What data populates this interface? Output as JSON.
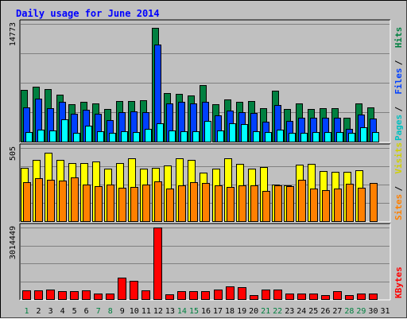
{
  "chart_data": {
    "type": "bar",
    "title": "Daily usage for June 2014",
    "categories": [
      "1",
      "2",
      "3",
      "4",
      "5",
      "6",
      "7",
      "8",
      "9",
      "10",
      "11",
      "12",
      "13",
      "14",
      "15",
      "16",
      "17",
      "18",
      "19",
      "20",
      "21",
      "22",
      "23",
      "24",
      "25",
      "26",
      "27",
      "28",
      "29",
      "30",
      "31"
    ],
    "weekend_days": [
      "1",
      "7",
      "8",
      "14",
      "15",
      "21",
      "22",
      "28",
      "29"
    ],
    "panels": [
      {
        "name": "hits_files_pages",
        "ymax": 14773,
        "ymax_label": "14773",
        "axis_labels": [
          "Pages",
          "Files",
          "Hits"
        ],
        "series": [
          {
            "name": "Hits",
            "color": "#008040",
            "values": [
              6450,
              6850,
              6600,
              5850,
              4700,
              5000,
              4750,
              4100,
              5050,
              5050,
              5200,
              14300,
              6100,
              6000,
              5800,
              7050,
              4700,
              5300,
              5000,
              5050,
              4150,
              6400,
              4100,
              4800,
              4100,
              4150,
              4150,
              3000,
              4800,
              4300,
              0
            ]
          },
          {
            "name": "Files",
            "color": "#0040ff",
            "values": [
              4300,
              5350,
              4200,
              5000,
              3500,
              3950,
              3450,
              2650,
              3700,
              3750,
              3650,
              12200,
              4800,
              5000,
              4800,
              5000,
              3250,
              3900,
              3700,
              3550,
              2500,
              4550,
              2550,
              3000,
              3000,
              3000,
              3000,
              1600,
              3400,
              2900,
              0
            ]
          },
          {
            "name": "Pages",
            "color": "#00ffff",
            "values": [
              1200,
              1450,
              1400,
              2800,
              1050,
              1950,
              1250,
              1100,
              1300,
              1150,
              1550,
              2300,
              1350,
              1300,
              1250,
              2600,
              1350,
              2250,
              2150,
              1300,
              1200,
              1500,
              1050,
              1100,
              1150,
              1150,
              1150,
              1050,
              1750,
              1200,
              0
            ]
          }
        ]
      },
      {
        "name": "visits_sites",
        "ymax": 505,
        "ymax_label": "505",
        "axis_labels": [
          "Sites",
          "Visits"
        ],
        "series": [
          {
            "name": "Visits",
            "color": "#ffff00",
            "values": [
              370,
              425,
              470,
              425,
              400,
              400,
              410,
              360,
              400,
              435,
              365,
              370,
              385,
              435,
              420,
              335,
              360,
              435,
              395,
              365,
              375,
              255,
              245,
              390,
              395,
              345,
              340,
              340,
              350,
              0,
              0
            ]
          },
          {
            "name": "Sites",
            "color": "#ff8000",
            "values": [
              270,
              295,
              285,
              280,
              300,
              255,
              240,
              250,
              230,
              235,
              250,
              275,
              225,
              245,
              270,
              265,
              245,
              235,
              245,
              245,
              210,
              245,
              240,
              285,
              225,
              215,
              225,
              260,
              230,
              265,
              0
            ]
          }
        ]
      },
      {
        "name": "kbytes",
        "ymax": 3014449,
        "ymax_label": "3014449",
        "axis_labels": [
          "KBytes"
        ],
        "series": [
          {
            "name": "KBytes",
            "color": "#ff0000",
            "values": [
              360000,
              360000,
              400000,
              330000,
              330000,
              360000,
              250000,
              240000,
              910000,
              760000,
              360000,
              3010000,
              210000,
              330000,
              350000,
              330000,
              400000,
              530000,
              510000,
              180000,
              400000,
              400000,
              240000,
              240000,
              240000,
              170000,
              350000,
              170000,
              250000,
              230000,
              0
            ]
          }
        ]
      }
    ],
    "x_label_color_weekday": "#000000",
    "x_label_color_weekend": "#008040"
  }
}
